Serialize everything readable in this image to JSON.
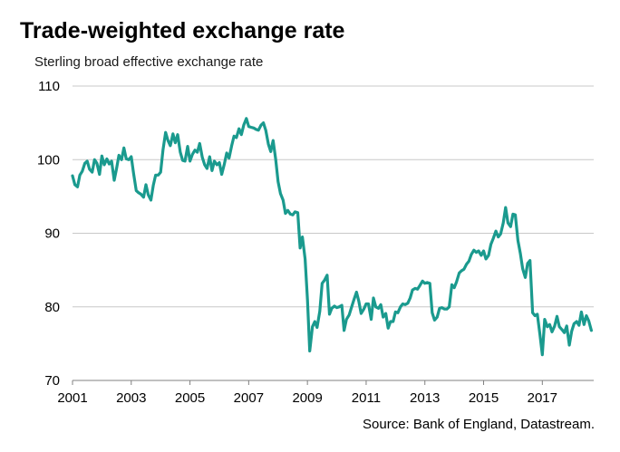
{
  "header": {
    "title": "Trade-weighted exchange rate",
    "subtitle": "Sterling broad effective exchange rate"
  },
  "footer": {
    "source": "Source: Bank of England, Datastream."
  },
  "colors": {
    "line": "#1a9a8e",
    "grid": "#c8c8c8",
    "axis": "#808080"
  },
  "chart_data": {
    "type": "line",
    "title": "Trade-weighted exchange rate",
    "subtitle": "Sterling broad effective exchange rate",
    "xlabel": "",
    "ylabel": "",
    "xlim": [
      2001,
      2018.75
    ],
    "ylim": [
      70,
      110
    ],
    "yticks": [
      70,
      80,
      90,
      100,
      110
    ],
    "xticks": [
      2001,
      2003,
      2005,
      2007,
      2009,
      2011,
      2013,
      2015,
      2017
    ],
    "xtick_labels": [
      "2001",
      "2003",
      "2005",
      "2007",
      "2009",
      "2011",
      "2013",
      "2015",
      "2017"
    ],
    "ytick_labels": [
      "70",
      "80",
      "90",
      "100",
      "110"
    ],
    "grid": true,
    "series": [
      {
        "x": [
          2001.0,
          2001.08,
          2001.17,
          2001.25,
          2001.33,
          2001.42,
          2001.5,
          2001.58,
          2001.67,
          2001.75,
          2001.83,
          2001.92,
          2002.0,
          2002.08,
          2002.17,
          2002.25,
          2002.33,
          2002.42,
          2002.5,
          2002.58,
          2002.67,
          2002.75,
          2002.83,
          2002.92,
          2003.0,
          2003.08,
          2003.17,
          2003.25,
          2003.33,
          2003.42,
          2003.5,
          2003.58,
          2003.67,
          2003.75,
          2003.83,
          2003.92,
          2004.0,
          2004.08,
          2004.17,
          2004.25,
          2004.33,
          2004.42,
          2004.5,
          2004.58,
          2004.67,
          2004.75,
          2004.83,
          2004.92,
          2005.0,
          2005.08,
          2005.17,
          2005.25,
          2005.33,
          2005.42,
          2005.5,
          2005.58,
          2005.67,
          2005.75,
          2005.83,
          2005.92,
          2006.0,
          2006.08,
          2006.17,
          2006.25,
          2006.33,
          2006.42,
          2006.5,
          2006.58,
          2006.67,
          2006.75,
          2006.83,
          2006.92,
          2007.0,
          2007.08,
          2007.17,
          2007.25,
          2007.33,
          2007.42,
          2007.5,
          2007.58,
          2007.67,
          2007.75,
          2007.83,
          2007.92,
          2008.0,
          2008.08,
          2008.17,
          2008.25,
          2008.33,
          2008.42,
          2008.5,
          2008.58,
          2008.67,
          2008.75,
          2008.83,
          2008.92,
          2009.0,
          2009.08,
          2009.17,
          2009.25,
          2009.33,
          2009.42,
          2009.5,
          2009.58,
          2009.67,
          2009.75,
          2009.83,
          2009.92,
          2010.0,
          2010.08,
          2010.17,
          2010.25,
          2010.33,
          2010.42,
          2010.5,
          2010.58,
          2010.67,
          2010.75,
          2010.83,
          2010.92,
          2011.0,
          2011.08,
          2011.17,
          2011.25,
          2011.33,
          2011.42,
          2011.5,
          2011.58,
          2011.67,
          2011.75,
          2011.83,
          2011.92,
          2012.0,
          2012.08,
          2012.17,
          2012.25,
          2012.33,
          2012.42,
          2012.5,
          2012.58,
          2012.67,
          2012.75,
          2012.83,
          2012.92,
          2013.0,
          2013.08,
          2013.17,
          2013.25,
          2013.33,
          2013.42,
          2013.5,
          2013.58,
          2013.67,
          2013.75,
          2013.83,
          2013.92,
          2014.0,
          2014.08,
          2014.17,
          2014.25,
          2014.33,
          2014.42,
          2014.5,
          2014.58,
          2014.67,
          2014.75,
          2014.83,
          2014.92,
          2015.0,
          2015.08,
          2015.17,
          2015.25,
          2015.33,
          2015.42,
          2015.5,
          2015.58,
          2015.67,
          2015.75,
          2015.83,
          2015.92,
          2016.0,
          2016.08,
          2016.17,
          2016.25,
          2016.33,
          2016.42,
          2016.5,
          2016.58,
          2016.67,
          2016.75,
          2016.83,
          2016.92,
          2017.0,
          2017.08,
          2017.17,
          2017.25,
          2017.33,
          2017.42,
          2017.5,
          2017.58,
          2017.67,
          2017.75,
          2017.83,
          2017.92,
          2018.0,
          2018.08,
          2018.17,
          2018.25,
          2018.33,
          2018.42,
          2018.5,
          2018.58,
          2018.67
        ],
        "values": [
          97.8,
          96.6,
          96.3,
          97.9,
          98.4,
          99.5,
          99.8,
          98.7,
          98.3,
          100.0,
          99.5,
          98.0,
          100.5,
          99.3,
          100.1,
          99.4,
          99.8,
          97.2,
          98.8,
          100.6,
          100.0,
          101.6,
          100.1,
          100.0,
          100.4,
          98.1,
          95.8,
          95.5,
          95.3,
          94.9,
          96.6,
          95.2,
          94.5,
          96.5,
          97.9,
          97.9,
          98.3,
          101.3,
          103.7,
          102.6,
          101.9,
          103.5,
          102.3,
          103.4,
          101.0,
          99.9,
          99.8,
          101.8,
          99.8,
          100.7,
          101.3,
          101.0,
          102.2,
          100.3,
          99.3,
          98.8,
          100.4,
          98.5,
          99.8,
          99.3,
          99.6,
          98.0,
          99.4,
          100.9,
          100.2,
          101.9,
          103.2,
          103.0,
          104.2,
          103.4,
          104.7,
          105.6,
          104.5,
          104.4,
          104.3,
          104.1,
          104.0,
          104.7,
          105.0,
          104.0,
          102.1,
          101.1,
          102.6,
          100.0,
          97.0,
          95.4,
          94.5,
          92.7,
          93.1,
          92.6,
          92.5,
          92.9,
          92.8,
          88.0,
          89.5,
          86.5,
          81.0,
          74.0,
          77.3,
          78.0,
          77.2,
          79.4,
          83.2,
          83.6,
          84.3,
          79.0,
          79.8,
          80.1,
          79.9,
          80.0,
          80.2,
          76.8,
          78.3,
          78.9,
          79.9,
          80.9,
          82.0,
          80.8,
          79.1,
          79.7,
          80.4,
          80.4,
          78.3,
          81.2,
          80.0,
          79.8,
          80.3,
          78.6,
          79.1,
          77.1,
          78.0,
          78.0,
          79.3,
          79.2,
          80.0,
          80.4,
          80.3,
          80.5,
          81.2,
          82.3,
          82.5,
          82.4,
          82.9,
          83.5,
          83.2,
          83.3,
          83.2,
          79.2,
          78.2,
          78.6,
          79.8,
          79.9,
          79.7,
          79.7,
          80.0,
          83.0,
          82.6,
          83.4,
          84.6,
          84.9,
          85.1,
          85.8,
          86.2,
          87.1,
          87.7,
          87.4,
          87.6,
          87.0,
          87.6,
          86.5,
          87.0,
          88.5,
          89.3,
          90.3,
          89.5,
          89.9,
          91.4,
          93.5,
          91.4,
          90.9,
          92.6,
          92.5,
          89.0,
          87.3,
          85.2,
          84.0,
          85.9,
          86.3,
          79.2,
          78.8,
          79.0,
          76.2,
          73.5,
          78.3,
          77.3,
          77.6,
          76.6,
          77.4,
          78.7,
          77.3,
          76.9,
          76.5,
          77.4,
          74.8,
          76.7,
          77.7,
          78.0,
          77.5,
          79.3,
          77.6,
          78.8,
          78.1,
          76.8
        ]
      }
    ]
  }
}
